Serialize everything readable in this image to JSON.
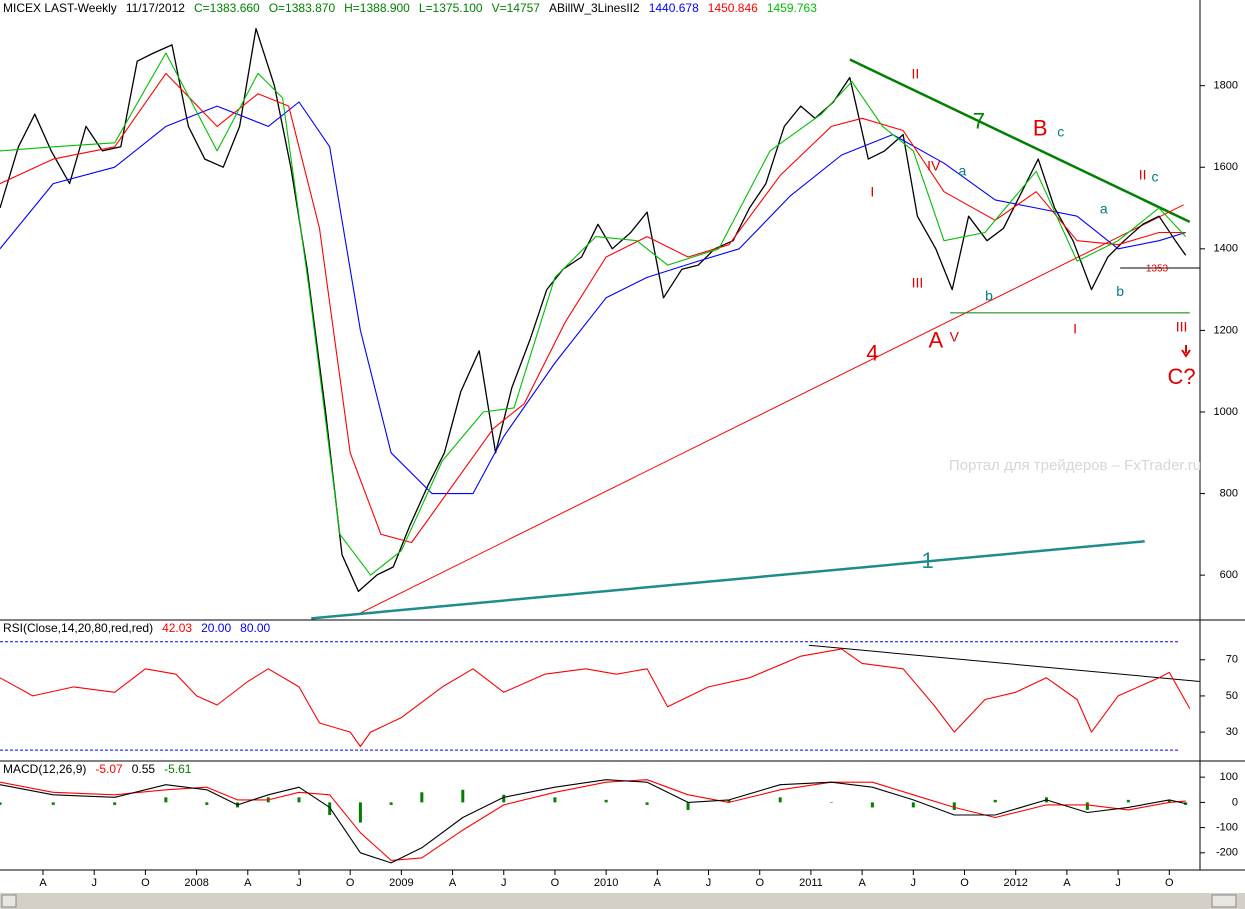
{
  "chart_data": [
    {
      "type": "line",
      "title": "MICEX LAST-Weekly",
      "date": "11/17/2012",
      "quote": [
        "C=1383.660",
        "O=1383.870",
        "H=1388.900",
        "L=1375.100",
        "V=14757"
      ],
      "indicator": "ABillW_3LinesII2",
      "watermark": "Портал для трейдеров – FxTrader.ru",
      "xlim": [
        2007.04,
        2012.9
      ],
      "ylim": [
        490,
        2010
      ],
      "yticks": [
        600,
        800,
        1000,
        1200,
        1400,
        1600,
        1800
      ],
      "series": [
        {
          "color": "#000000",
          "type": "line",
          "x": [
            2007.04,
            2007.13,
            2007.21,
            2007.29,
            2007.38,
            2007.46,
            2007.54,
            2007.63,
            2007.71,
            2007.79,
            2007.88,
            2007.96,
            2008.04,
            2008.13,
            2008.21,
            2008.29,
            2008.38,
            2008.46,
            2008.54,
            2008.63,
            2008.71,
            2008.79,
            2008.88,
            2008.96,
            2009.04,
            2009.13,
            2009.21,
            2009.29,
            2009.38,
            2009.46,
            2009.54,
            2009.63,
            2009.71,
            2009.79,
            2009.88,
            2009.96,
            2010.03,
            2010.12,
            2010.2,
            2010.28,
            2010.37,
            2010.45,
            2010.53,
            2010.62,
            2010.7,
            2010.78,
            2010.87,
            2010.95,
            2011.02,
            2011.11,
            2011.19,
            2011.28,
            2011.36,
            2011.45,
            2011.52,
            2011.61,
            2011.69,
            2011.77,
            2011.86,
            2011.94,
            2012.02,
            2012.11,
            2012.19,
            2012.28,
            2012.37,
            2012.45,
            2012.53,
            2012.62,
            2012.7,
            2012.78,
            2012.83
          ],
          "values": [
            1500,
            1650,
            1730,
            1640,
            1560,
            1700,
            1640,
            1650,
            1860,
            1880,
            1900,
            1700,
            1620,
            1600,
            1700,
            1940,
            1800,
            1600,
            1350,
            1000,
            650,
            560,
            600,
            620,
            720,
            820,
            900,
            1050,
            1150,
            900,
            1060,
            1180,
            1300,
            1350,
            1380,
            1460,
            1400,
            1440,
            1490,
            1280,
            1350,
            1360,
            1400,
            1420,
            1500,
            1560,
            1700,
            1750,
            1720,
            1760,
            1820,
            1620,
            1640,
            1680,
            1480,
            1400,
            1300,
            1480,
            1420,
            1450,
            1530,
            1620,
            1500,
            1420,
            1300,
            1380,
            1420,
            1460,
            1480,
            1420,
            1384
          ]
        },
        {
          "name": "1440.678",
          "color": "#0000ff",
          "type": "line",
          "x": [
            2007.04,
            2007.3,
            2007.6,
            2007.85,
            2008.1,
            2008.35,
            2008.5,
            2008.65,
            2008.8,
            2008.95,
            2009.15,
            2009.35,
            2009.5,
            2009.75,
            2010.0,
            2010.2,
            2010.45,
            2010.65,
            2010.9,
            2011.15,
            2011.4,
            2011.65,
            2011.9,
            2012.1,
            2012.3,
            2012.5,
            2012.7,
            2012.83
          ],
          "values": [
            1400,
            1560,
            1600,
            1700,
            1750,
            1700,
            1760,
            1650,
            1200,
            900,
            800,
            800,
            940,
            1120,
            1280,
            1330,
            1370,
            1400,
            1530,
            1630,
            1680,
            1610,
            1520,
            1500,
            1480,
            1400,
            1420,
            1440
          ]
        },
        {
          "name": "1450.846",
          "color": "#ff0000",
          "type": "line",
          "x": [
            2007.04,
            2007.3,
            2007.6,
            2007.85,
            2008.1,
            2008.3,
            2008.45,
            2008.6,
            2008.75,
            2008.9,
            2009.05,
            2009.25,
            2009.45,
            2009.6,
            2009.8,
            2010.0,
            2010.2,
            2010.4,
            2010.6,
            2010.85,
            2011.1,
            2011.25,
            2011.45,
            2011.65,
            2011.9,
            2012.1,
            2012.3,
            2012.5,
            2012.7,
            2012.83
          ],
          "values": [
            1560,
            1620,
            1650,
            1830,
            1700,
            1780,
            1750,
            1450,
            900,
            700,
            680,
            820,
            960,
            1020,
            1220,
            1380,
            1430,
            1380,
            1410,
            1580,
            1700,
            1720,
            1690,
            1540,
            1470,
            1540,
            1420,
            1410,
            1440,
            1440
          ]
        },
        {
          "name": "1459.763",
          "color": "#00c000",
          "type": "line",
          "x": [
            2007.04,
            2007.3,
            2007.6,
            2007.85,
            2008.1,
            2008.3,
            2008.42,
            2008.55,
            2008.7,
            2008.85,
            2009.0,
            2009.2,
            2009.4,
            2009.55,
            2009.75,
            2009.95,
            2010.15,
            2010.3,
            2010.55,
            2010.8,
            2011.05,
            2011.2,
            2011.35,
            2011.5,
            2011.65,
            2011.85,
            2012.1,
            2012.3,
            2012.5,
            2012.7,
            2012.83
          ],
          "values": [
            1640,
            1650,
            1660,
            1880,
            1640,
            1830,
            1770,
            1300,
            700,
            600,
            660,
            880,
            1000,
            1010,
            1330,
            1430,
            1420,
            1360,
            1400,
            1640,
            1730,
            1810,
            1700,
            1640,
            1420,
            1440,
            1590,
            1370,
            1420,
            1500,
            1430
          ]
        }
      ],
      "trendlines": [
        {
          "color": "#008000",
          "weight": "heavy",
          "points": [
            [
              2011.19,
              1864
            ],
            [
              2012.85,
              1466
            ]
          ]
        },
        {
          "color": "#ff0000",
          "weight": "thin",
          "points": [
            [
              2008.78,
              502
            ],
            [
              2012.82,
              1508
            ]
          ]
        },
        {
          "color": "#1e8c8c",
          "weight": "heavy",
          "points": [
            [
              2008.56,
              494
            ],
            [
              2012.63,
              683
            ]
          ]
        },
        {
          "color": "#008000",
          "weight": "thin",
          "points": [
            [
              2011.68,
              1243
            ],
            [
              2012.85,
              1243
            ]
          ]
        },
        {
          "color": "#000000",
          "weight": "thin",
          "points": [
            [
              2012.51,
              1353
            ],
            [
              2012.9,
              1353
            ]
          ]
        }
      ],
      "annotations": [
        {
          "text": "II",
          "x": 2011.51,
          "y": 1827,
          "color": "#e00000",
          "degree": "minor"
        },
        {
          "text": "7",
          "x": 2011.82,
          "y": 1709,
          "color": "#008000",
          "degree": "major"
        },
        {
          "text": "B",
          "x": 2012.12,
          "y": 1692,
          "color": "#e00000",
          "degree": "major"
        },
        {
          "text": "c",
          "x": 2012.22,
          "y": 1685,
          "color": "#008080",
          "degree": "minor"
        },
        {
          "text": "I",
          "x": 2011.3,
          "y": 1537,
          "color": "#e00000",
          "degree": "minor"
        },
        {
          "text": "IV",
          "x": 2011.6,
          "y": 1601,
          "color": "#e00000",
          "degree": "minor"
        },
        {
          "text": "a",
          "x": 2011.74,
          "y": 1589,
          "color": "#008080",
          "degree": "minor"
        },
        {
          "text": "III",
          "x": 2011.52,
          "y": 1314,
          "color": "#e00000",
          "degree": "minor"
        },
        {
          "text": "b",
          "x": 2011.87,
          "y": 1282,
          "color": "#008080",
          "degree": "minor"
        },
        {
          "text": "A",
          "x": 2011.61,
          "y": 1172,
          "color": "#e00000",
          "degree": "major"
        },
        {
          "text": "V",
          "x": 2011.7,
          "y": 1182,
          "color": "#e00000",
          "degree": "minor"
        },
        {
          "text": "4",
          "x": 2011.3,
          "y": 1140,
          "color": "#e00000",
          "degree": "major"
        },
        {
          "text": "II",
          "x": 2012.62,
          "y": 1579,
          "color": "#e00000",
          "degree": "minor"
        },
        {
          "text": "c",
          "x": 2012.68,
          "y": 1574,
          "color": "#008080",
          "degree": "minor"
        },
        {
          "text": "a",
          "x": 2012.43,
          "y": 1496,
          "color": "#008080",
          "degree": "minor"
        },
        {
          "text": "b",
          "x": 2012.51,
          "y": 1294,
          "color": "#008080",
          "degree": "minor"
        },
        {
          "text": "1353",
          "x": 2012.69,
          "y": 1351,
          "color": "#e00000",
          "degree": "small"
        },
        {
          "text": "I",
          "x": 2012.29,
          "y": 1201,
          "color": "#e00000",
          "degree": "minor"
        },
        {
          "text": "III",
          "x": 2012.81,
          "y": 1206,
          "color": "#e00000",
          "degree": "minor"
        },
        {
          "text": "C?",
          "x": 2012.81,
          "y": 1083,
          "color": "#e00000",
          "degree": "major"
        },
        {
          "text": "1",
          "x": 2011.57,
          "y": 632,
          "color": "#1e8c8c",
          "degree": "major"
        }
      ]
    },
    {
      "type": "line",
      "title": "RSI(Close,14,20,80,red,red)",
      "xlim": [
        2007.04,
        2012.9
      ],
      "ylim": [
        14,
        92
      ],
      "yticks": [
        30,
        50,
        70
      ],
      "levels": [
        {
          "value": 20,
          "label": "20.00"
        },
        {
          "value": 80,
          "label": "80.00"
        }
      ],
      "level_color": "#0000ff",
      "series": [
        {
          "name": "42.03",
          "color": "#ff0000",
          "type": "line",
          "x": [
            2007.04,
            2007.2,
            2007.4,
            2007.6,
            2007.75,
            2007.9,
            2008.0,
            2008.1,
            2008.25,
            2008.35,
            2008.5,
            2008.6,
            2008.75,
            2008.8,
            2008.85,
            2009.0,
            2009.2,
            2009.35,
            2009.5,
            2009.7,
            2009.9,
            2010.05,
            2010.2,
            2010.3,
            2010.5,
            2010.7,
            2010.95,
            2011.15,
            2011.25,
            2011.45,
            2011.6,
            2011.7,
            2011.85,
            2012.0,
            2012.15,
            2012.3,
            2012.37,
            2012.5,
            2012.7,
            2012.75,
            2012.85
          ],
          "values": [
            60,
            50,
            55,
            52,
            65,
            62,
            50,
            45,
            58,
            65,
            55,
            35,
            30,
            22,
            30,
            38,
            55,
            65,
            52,
            62,
            65,
            62,
            65,
            44,
            55,
            60,
            72,
            76,
            68,
            65,
            45,
            30,
            48,
            52,
            60,
            48,
            30,
            50,
            60,
            63,
            43
          ]
        }
      ],
      "trendlines": [
        {
          "color": "#000000",
          "weight": "thin",
          "points": [
            [
              2010.99,
              78
            ],
            [
              2012.9,
              58
            ]
          ]
        }
      ]
    },
    {
      "type": "line",
      "title": "MACD(12,26,9)",
      "xlim": [
        2007.04,
        2012.9
      ],
      "ylim": [
        -268,
        164
      ],
      "yticks": [
        100,
        0,
        -100,
        -200
      ],
      "xticks": [
        {
          "value": 2007.25,
          "label": "A"
        },
        {
          "value": 2007.5,
          "label": "J"
        },
        {
          "value": 2007.75,
          "label": "O"
        },
        2008,
        {
          "value": 2008.25,
          "label": "A"
        },
        {
          "value": 2008.5,
          "label": "J"
        },
        {
          "value": 2008.75,
          "label": "O"
        },
        2009,
        {
          "value": 2009.25,
          "label": "A"
        },
        {
          "value": 2009.5,
          "label": "J"
        },
        {
          "value": 2009.75,
          "label": "O"
        },
        2010,
        {
          "value": 2010.25,
          "label": "A"
        },
        {
          "value": 2010.5,
          "label": "J"
        },
        {
          "value": 2010.75,
          "label": "O"
        },
        2011,
        {
          "value": 2011.25,
          "label": "A"
        },
        {
          "value": 2011.5,
          "label": "J"
        },
        {
          "value": 2011.75,
          "label": "O"
        },
        2012,
        {
          "value": 2012.25,
          "label": "A"
        },
        {
          "value": 2012.5,
          "label": "J"
        },
        {
          "value": 2012.75,
          "label": "O"
        }
      ],
      "series": [
        {
          "name": "-5.07",
          "color": "#ff0000",
          "type": "line",
          "x": [
            2007.04,
            2007.3,
            2007.6,
            2007.85,
            2008.05,
            2008.2,
            2008.35,
            2008.5,
            2008.65,
            2008.8,
            2008.95,
            2009.1,
            2009.3,
            2009.5,
            2009.75,
            2010.0,
            2010.2,
            2010.4,
            2010.6,
            2010.85,
            2011.1,
            2011.3,
            2011.5,
            2011.7,
            2011.9,
            2012.15,
            2012.35,
            2012.55,
            2012.75,
            2012.83
          ],
          "values": [
            80,
            40,
            30,
            50,
            60,
            10,
            10,
            40,
            30,
            -120,
            -230,
            -220,
            -110,
            -10,
            40,
            80,
            90,
            30,
            0,
            50,
            80,
            80,
            30,
            -20,
            -60,
            -10,
            -10,
            -30,
            0,
            5
          ]
        },
        {
          "name": "0.55",
          "color": "#000000",
          "type": "line",
          "x": [
            2007.04,
            2007.3,
            2007.6,
            2007.85,
            2008.05,
            2008.2,
            2008.35,
            2008.5,
            2008.65,
            2008.8,
            2008.95,
            2009.1,
            2009.3,
            2009.5,
            2009.75,
            2010.0,
            2010.2,
            2010.4,
            2010.6,
            2010.85,
            2011.1,
            2011.3,
            2011.5,
            2011.7,
            2011.9,
            2012.15,
            2012.35,
            2012.55,
            2012.75,
            2012.83
          ],
          "values": [
            70,
            30,
            20,
            70,
            50,
            -10,
            30,
            60,
            -20,
            -200,
            -240,
            -180,
            -60,
            20,
            60,
            90,
            80,
            0,
            10,
            70,
            80,
            60,
            10,
            -50,
            -50,
            10,
            -40,
            -20,
            10,
            -5
          ]
        },
        {
          "name": "-5.61",
          "color": "#008000",
          "type": "histogram",
          "x": [
            2007.04,
            2007.3,
            2007.6,
            2007.85,
            2008.05,
            2008.2,
            2008.35,
            2008.5,
            2008.65,
            2008.8,
            2008.95,
            2009.1,
            2009.3,
            2009.5,
            2009.75,
            2010.0,
            2010.2,
            2010.4,
            2010.6,
            2010.85,
            2011.1,
            2011.3,
            2011.5,
            2011.7,
            2011.9,
            2012.15,
            2012.35,
            2012.55,
            2012.75,
            2012.83
          ],
          "values": [
            -10,
            -10,
            -10,
            20,
            -10,
            -20,
            20,
            20,
            -50,
            -80,
            -10,
            40,
            50,
            30,
            20,
            10,
            -10,
            -30,
            10,
            20,
            0,
            -20,
            -20,
            -30,
            10,
            20,
            -30,
            10,
            10,
            -10
          ]
        }
      ]
    }
  ]
}
